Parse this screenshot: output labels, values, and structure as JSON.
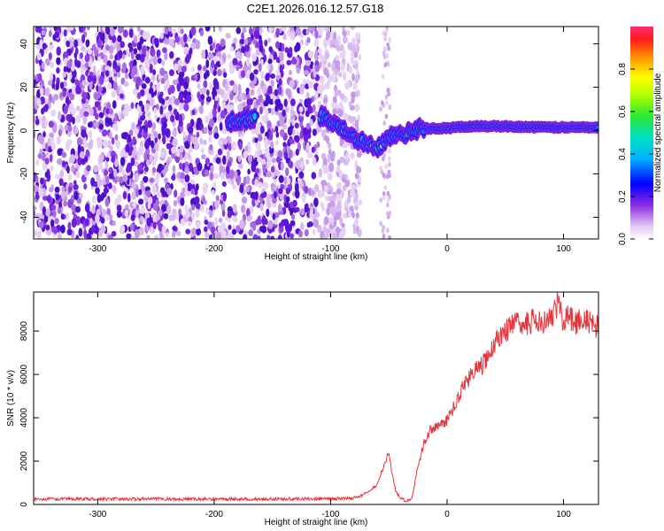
{
  "title": "C2E1.2026.016.12.57.G18",
  "chart_data": [
    {
      "type": "heatmap",
      "xlabel": "Height of straight line (km)",
      "ylabel": "Frequency (Hz)",
      "xlim": [
        -355,
        130
      ],
      "ylim": [
        -50,
        48
      ],
      "xticks": [
        -300,
        -200,
        -100,
        0,
        100
      ],
      "yticks": [
        -40,
        -20,
        0,
        20,
        40
      ],
      "xtick_labels": [
        "-300",
        "-200",
        "-100",
        "0",
        "100"
      ],
      "ytick_labels": [
        "-40",
        "-20",
        "0",
        "20",
        "40"
      ],
      "colorbar": {
        "label": "Normalized spectral amplitude",
        "range": [
          0,
          1
        ],
        "ticks": [
          0.0,
          0.2,
          0.4,
          0.6,
          0.8
        ],
        "tick_labels": [
          "0.0",
          "0.2",
          "0.4",
          "0.6",
          "0.8"
        ]
      },
      "signal_track": {
        "x": [
          -185,
          -170,
          -110,
          -95,
          -80,
          -70,
          -60,
          -50,
          -40,
          -30,
          -20,
          -10,
          0,
          20,
          50,
          80,
          110,
          130
        ],
        "freq": [
          4,
          5,
          7,
          3,
          -3,
          -6,
          -8,
          -3,
          -2,
          0,
          1,
          1,
          1,
          2,
          2,
          1.5,
          1.5,
          1.5
        ]
      }
    },
    {
      "type": "line",
      "xlabel": "Height of straight line (km)",
      "ylabel": "SNR (10 * v/v)",
      "xlim": [
        -355,
        130
      ],
      "ylim": [
        0,
        9800
      ],
      "xticks": [
        -300,
        -200,
        -100,
        0,
        100
      ],
      "yticks": [
        0,
        2000,
        4000,
        6000,
        8000
      ],
      "xtick_labels": [
        "-300",
        "-200",
        "-100",
        "0",
        "100"
      ],
      "ytick_labels": [
        "0",
        "2000",
        "4000",
        "6000",
        "8000"
      ],
      "series": [
        {
          "name": "SNR",
          "color": "#e8333a",
          "x": [
            -355,
            -300,
            -250,
            -200,
            -150,
            -100,
            -80,
            -70,
            -60,
            -55,
            -50,
            -47,
            -44,
            -40,
            -35,
            -30,
            -28,
            -25,
            -20,
            -15,
            -10,
            -5,
            0,
            5,
            10,
            15,
            20,
            25,
            30,
            35,
            40,
            45,
            50,
            55,
            60,
            65,
            70,
            75,
            80,
            85,
            90,
            95,
            100,
            105,
            110,
            115,
            120,
            125,
            130
          ],
          "y": [
            250,
            250,
            250,
            250,
            250,
            260,
            300,
            500,
            900,
            1700,
            2400,
            1300,
            600,
            300,
            150,
            300,
            900,
            1800,
            2800,
            3400,
            3600,
            3700,
            3900,
            4400,
            5000,
            5600,
            5900,
            6200,
            6400,
            6800,
            7300,
            7800,
            8000,
            8200,
            8300,
            8400,
            8300,
            8500,
            8600,
            8400,
            8700,
            9200,
            8500,
            8700,
            8400,
            8600,
            8400,
            8300,
            8200
          ]
        }
      ]
    }
  ]
}
